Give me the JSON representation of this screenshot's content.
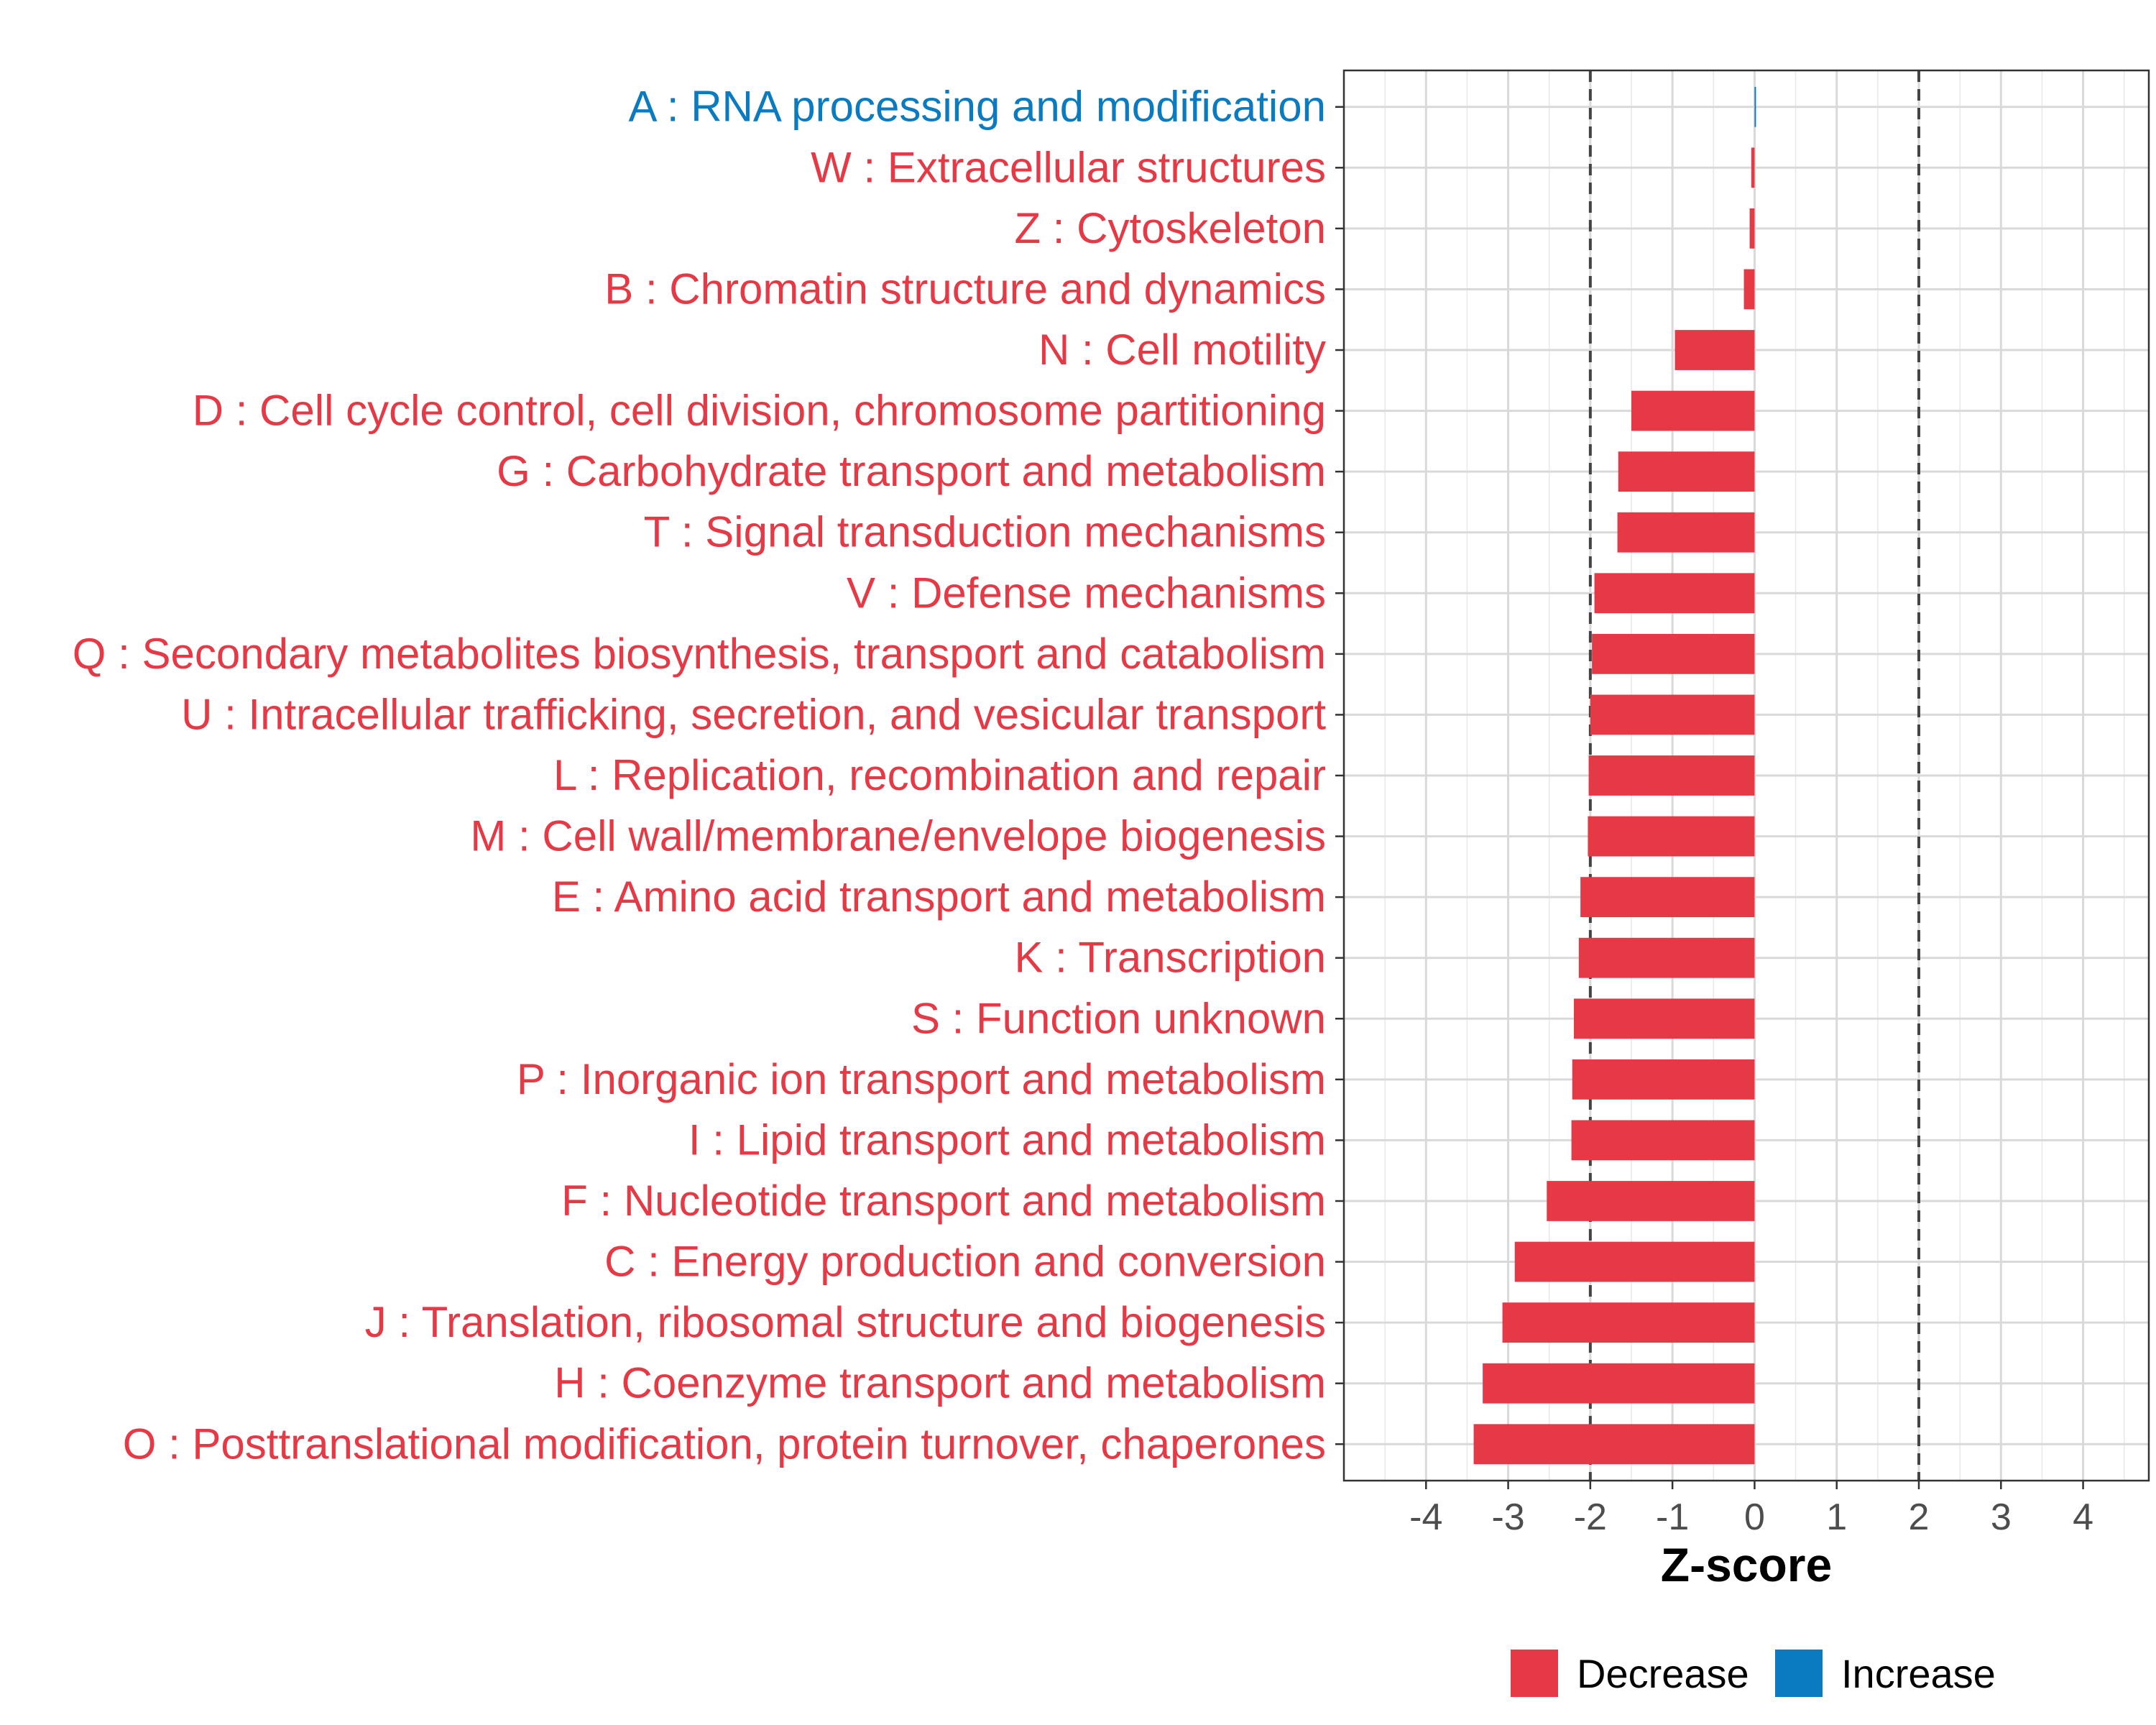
{
  "chart_data": {
    "type": "bar",
    "orientation": "horizontal",
    "title": "",
    "xlabel": "Z-score",
    "ylabel": "",
    "xlim": [
      -5,
      4.8
    ],
    "xticks": [
      -4,
      -3,
      -2,
      -1,
      0,
      1,
      2,
      3,
      4
    ],
    "xtick_labels": [
      "-4",
      "-3",
      "-2",
      "-1",
      "0",
      "1",
      "2",
      "3",
      "4"
    ],
    "reference_lines": [
      -2,
      2
    ],
    "grid": true,
    "colors": {
      "Decrease": "#E63946",
      "Increase": "#0B7BC1"
    },
    "legend": {
      "placement": "bottom",
      "entries": [
        {
          "label": "Decrease",
          "color": "#E63946"
        },
        {
          "label": "Increase",
          "color": "#0B7BC1"
        }
      ]
    },
    "categories": [
      "A : RNA processing and modification",
      "W : Extracellular structures",
      "Z : Cytoskeleton",
      "B : Chromatin structure and dynamics",
      "N : Cell motility",
      "D : Cell cycle control, cell division, chromosome partitioning",
      "G : Carbohydrate transport and metabolism",
      "T : Signal transduction mechanisms",
      "V : Defense mechanisms",
      "Q : Secondary metabolites biosynthesis, transport and catabolism",
      "U : Intracellular trafficking, secretion, and vesicular transport",
      "L : Replication, recombination and repair",
      "M : Cell wall/membrane/envelope biogenesis",
      "E : Amino acid transport and metabolism",
      "K : Transcription",
      "S : Function unknown",
      "P : Inorganic ion transport and metabolism",
      "I : Lipid transport and metabolism",
      "F : Nucleotide transport and metabolism",
      "C : Energy production and conversion",
      "J : Translation, ribosomal structure and biogenesis",
      "H : Coenzyme transport and metabolism",
      "O : Posttranslational modification, protein turnover, chaperones"
    ],
    "values": [
      0.01,
      -0.04,
      -0.06,
      -0.13,
      -0.97,
      -1.5,
      -1.66,
      -1.67,
      -1.95,
      -1.98,
      -2.0,
      -2.02,
      -2.03,
      -2.12,
      -2.14,
      -2.2,
      -2.22,
      -2.23,
      -2.53,
      -2.92,
      -3.07,
      -3.31,
      -3.42
    ],
    "direction": [
      "Increase",
      "Decrease",
      "Decrease",
      "Decrease",
      "Decrease",
      "Decrease",
      "Decrease",
      "Decrease",
      "Decrease",
      "Decrease",
      "Decrease",
      "Decrease",
      "Decrease",
      "Decrease",
      "Decrease",
      "Decrease",
      "Decrease",
      "Decrease",
      "Decrease",
      "Decrease",
      "Decrease",
      "Decrease",
      "Decrease"
    ]
  }
}
